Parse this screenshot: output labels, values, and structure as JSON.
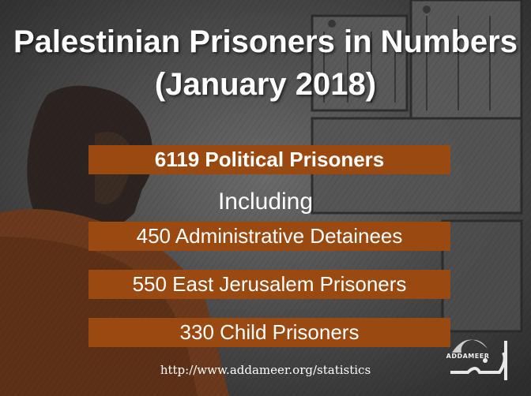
{
  "title": {
    "line1": "Palestinian Prisoners in Numbers",
    "line2": "(January 2018)"
  },
  "stats": {
    "political": "6119 Political Prisoners",
    "including": "Including",
    "administrative": "450 Administrative Detainees",
    "east_jerusalem": "550 East Jerusalem Prisoners",
    "child": "330 Child Prisoners"
  },
  "footer": {
    "url": "http://www.addameer.org/statistics",
    "logo_text": "ADDAMEER"
  },
  "colors": {
    "bar": "#9a4a10",
    "text": "#ffffff",
    "background": "#4a4a4a"
  }
}
